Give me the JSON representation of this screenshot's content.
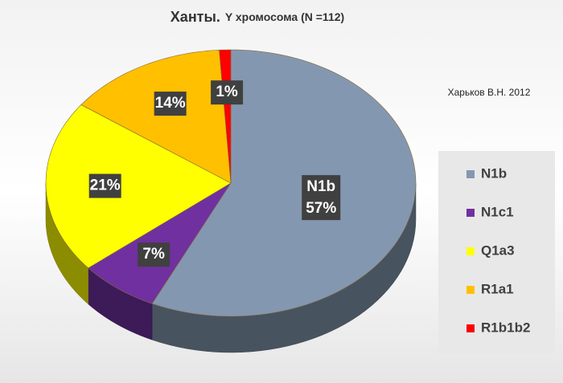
{
  "chart_data": {
    "type": "pie",
    "title": "Ханты.",
    "subtitle": "Y хромосома (N =112)",
    "annotation": "Харьков В.Н. 2012",
    "categories": [
      "N1b",
      "N1c1",
      "Q1a3",
      "R1a1",
      "R1b1b2"
    ],
    "values": [
      57,
      7,
      21,
      14,
      1
    ],
    "value_labels": [
      "57%",
      "7%",
      "21%",
      "14%",
      "1%"
    ],
    "colors": [
      "#8497b0",
      "#7030a0",
      "#ffff00",
      "#ffc000",
      "#ff0000"
    ],
    "legend": "right"
  }
}
